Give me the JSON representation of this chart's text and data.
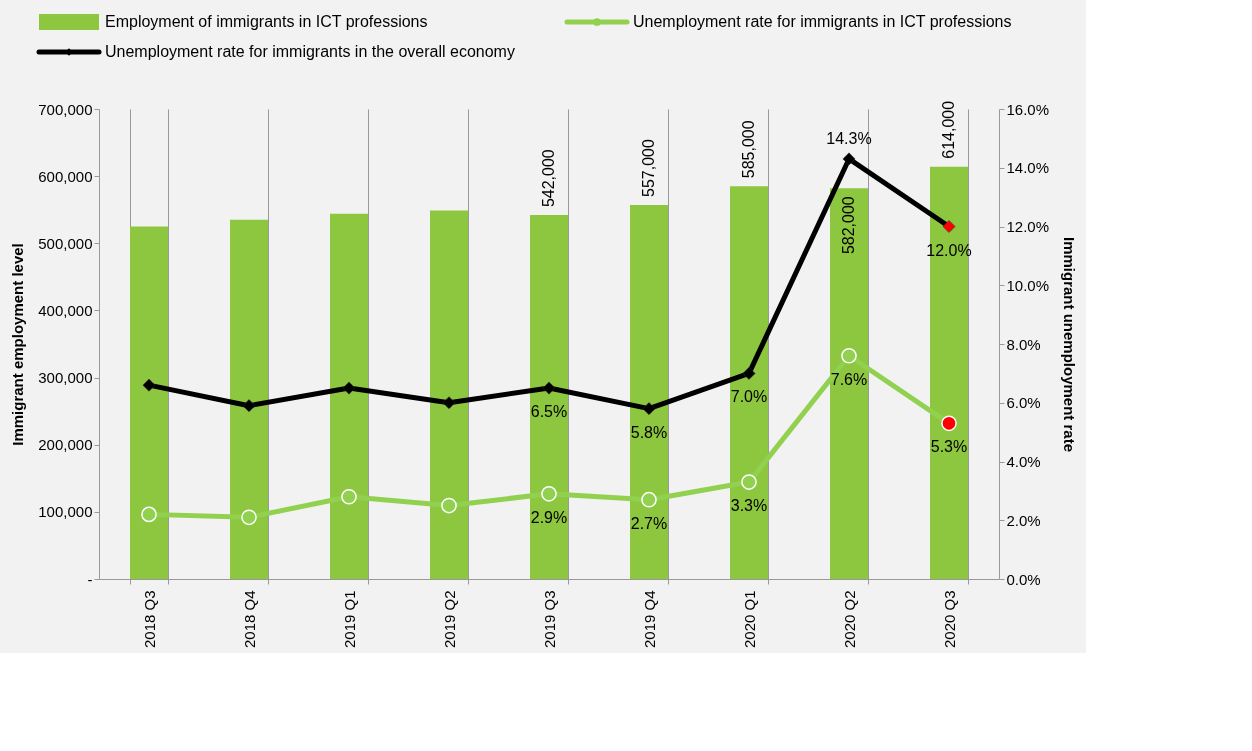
{
  "chart_data": {
    "type": "bar",
    "ylabel": "Immigrant employment level",
    "y2label": "Immigrant unemployment rate",
    "categories": [
      "2018 Q3",
      "2018 Q4",
      "2019 Q1",
      "2019 Q2",
      "2019 Q3",
      "2019 Q4",
      "2020 Q1",
      "2020 Q2",
      "2020 Q3"
    ],
    "series": [
      {
        "name": "Employment of immigrants in ICT professions",
        "color": "#8dc63f",
        "values": [
          525000,
          535000,
          544000,
          549000,
          542000,
          557000,
          585000,
          582000,
          614000
        ],
        "value_labels": [
          null,
          null,
          null,
          null,
          "542,000",
          "557,000",
          "585,000",
          "582,000",
          "614,000"
        ]
      },
      {
        "name": "Unemployment rate for immigrants in ICT professions",
        "type": "line",
        "axis": "y2",
        "marker": "circle",
        "color": "#92d050",
        "colors": [
          "#92d050",
          "#92d050",
          "#92d050",
          "#92d050",
          "#92d050",
          "#92d050",
          "#92d050",
          "#92d050",
          "#ff0000"
        ],
        "values": [
          2.2,
          2.1,
          2.8,
          2.5,
          2.9,
          2.7,
          3.3,
          7.6,
          5.3
        ],
        "value_labels": [
          null,
          null,
          null,
          null,
          "2.9%",
          "2.7%",
          "3.3%",
          "7.6%",
          "5.3%"
        ]
      },
      {
        "name": "Unemployment rate for immigrants in the overall economy",
        "type": "line",
        "axis": "y2",
        "marker": "diamond",
        "color": "#000000",
        "colors": [
          "#000000",
          "#000000",
          "#000000",
          "#000000",
          "#000000",
          "#000000",
          "#000000",
          "#000000",
          "#ff0000"
        ],
        "values": [
          6.6,
          5.9,
          6.5,
          6.0,
          6.5,
          5.8,
          7.0,
          14.3,
          12.0
        ],
        "value_labels": [
          null,
          null,
          null,
          null,
          "6.5%",
          "5.8%",
          "7.0%",
          "14.3%",
          "12.0%"
        ]
      }
    ],
    "ylim": [
      0,
      700000
    ],
    "yticks": [
      {
        "value": 0,
        "label": "-"
      },
      {
        "value": 100000,
        "label": "100,000"
      },
      {
        "value": 200000,
        "label": "200,000"
      },
      {
        "value": 300000,
        "label": "300,000"
      },
      {
        "value": 400000,
        "label": "400,000"
      },
      {
        "value": 500000,
        "label": "500,000"
      },
      {
        "value": 600000,
        "label": "600,000"
      },
      {
        "value": 700000,
        "label": "700,000"
      }
    ],
    "y2lim": [
      0,
      16
    ],
    "y2ticks": [
      {
        "value": 0,
        "label": "0.0%"
      },
      {
        "value": 2,
        "label": "2.0%"
      },
      {
        "value": 4,
        "label": "4.0%"
      },
      {
        "value": 6,
        "label": "6.0%"
      },
      {
        "value": 8,
        "label": "8.0%"
      },
      {
        "value": 10,
        "label": "10.0%"
      },
      {
        "value": 12,
        "label": "12.0%"
      },
      {
        "value": 14,
        "label": "14.0%"
      },
      {
        "value": 16,
        "label": "16.0%"
      }
    ],
    "grid": "x",
    "legend": "top"
  }
}
